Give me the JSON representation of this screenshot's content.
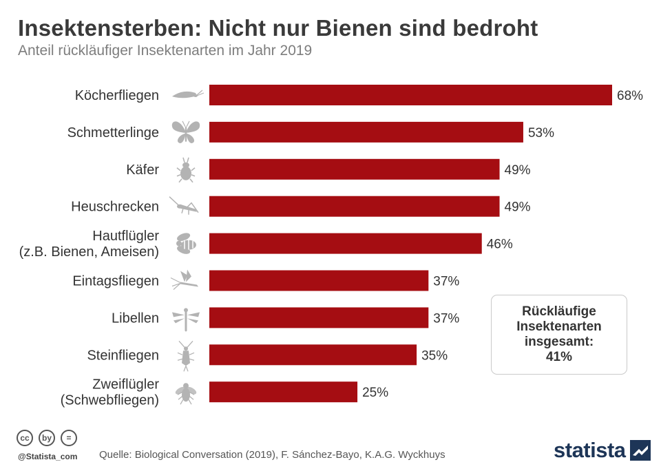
{
  "title": "Insektensterben: Nicht nur Bienen sind bedroht",
  "subtitle": "Anteil rückläufiger Insektenarten im Jahr 2019",
  "chart_data": {
    "type": "bar",
    "orientation": "horizontal",
    "categories": [
      [
        "Köcherfliegen"
      ],
      [
        "Schmetterlinge"
      ],
      [
        "Käfer"
      ],
      [
        "Heuschrecken"
      ],
      [
        "Hautflügler",
        "(z.B. Bienen, Ameisen)"
      ],
      [
        "Eintagsfliegen"
      ],
      [
        "Libellen"
      ],
      [
        "Steinfliegen"
      ],
      [
        "Zweiflügler",
        "(Schwebfliegen)"
      ]
    ],
    "icons": [
      "caddisfly-icon",
      "butterfly-icon",
      "beetle-icon",
      "grasshopper-icon",
      "bee-icon",
      "mayfly-icon",
      "dragonfly-icon",
      "stonefly-icon",
      "fly-icon"
    ],
    "values": [
      68,
      53,
      49,
      49,
      46,
      37,
      37,
      35,
      25
    ],
    "value_labels": [
      "68%",
      "53%",
      "49%",
      "49%",
      "46%",
      "37%",
      "37%",
      "35%",
      "25%"
    ],
    "unit": "%",
    "xlim": [
      0,
      68
    ],
    "bar_color": "#a50d12",
    "icon_color": "#b3b3b3"
  },
  "callout": {
    "lines": [
      "Rückläufige",
      "Insektenarten",
      "insgesamt:",
      "41%"
    ]
  },
  "footer": {
    "cc_icons": [
      "cc",
      "by",
      "="
    ],
    "handle": "@Statista_com",
    "source": "Quelle: Biological Conversation (2019), F. Sánchez-Bayo, K.A.G. Wyckhuys",
    "brand": "statista",
    "brand_color": "#1d3557"
  }
}
